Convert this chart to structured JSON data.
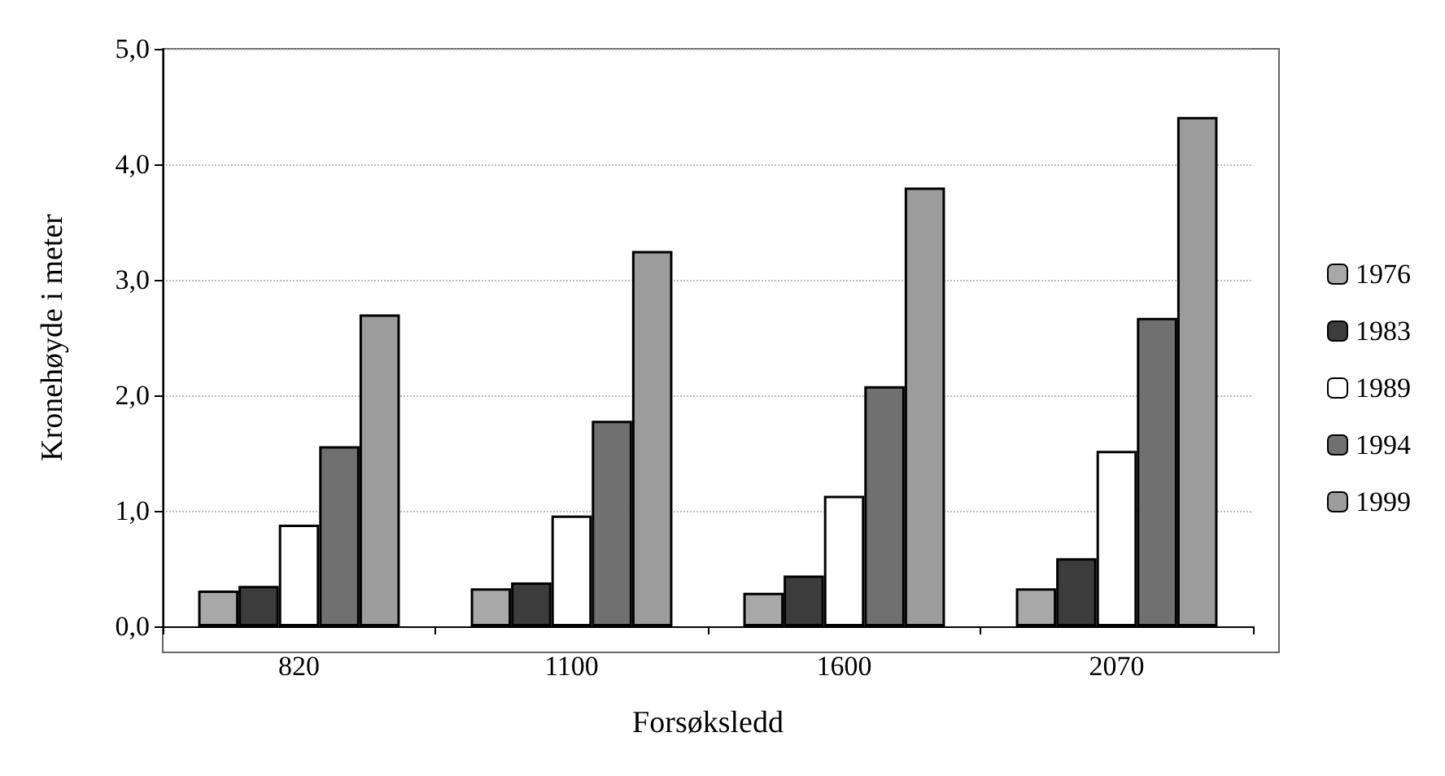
{
  "chart_data": {
    "type": "bar",
    "xlabel": "Forsøksledd",
    "ylabel": "Kronehøyde i meter",
    "categories": [
      "820",
      "1100",
      "1600",
      "2070"
    ],
    "series": [
      {
        "name": "1976",
        "color": "#a8a8a8",
        "values": [
          0.31,
          0.33,
          0.29,
          0.33
        ]
      },
      {
        "name": "1983",
        "color": "#3c3c3c",
        "values": [
          0.35,
          0.38,
          0.44,
          0.59
        ]
      },
      {
        "name": "1989",
        "color": "#ffffff",
        "values": [
          0.88,
          0.96,
          1.13,
          1.52
        ]
      },
      {
        "name": "1994",
        "color": "#707070",
        "values": [
          1.56,
          1.78,
          2.08,
          2.67
        ]
      },
      {
        "name": "1999",
        "color": "#9c9c9c",
        "values": [
          2.7,
          3.25,
          3.8,
          4.41
        ]
      }
    ],
    "ylim": [
      0,
      5
    ],
    "yticks": [
      {
        "value": 0,
        "label": "0,0"
      },
      {
        "value": 1,
        "label": "1,0"
      },
      {
        "value": 2,
        "label": "2,0"
      },
      {
        "value": 3,
        "label": "3,0"
      },
      {
        "value": 4,
        "label": "4,0"
      },
      {
        "value": 5,
        "label": "5,0"
      }
    ],
    "grid": "y",
    "legend": "right"
  }
}
